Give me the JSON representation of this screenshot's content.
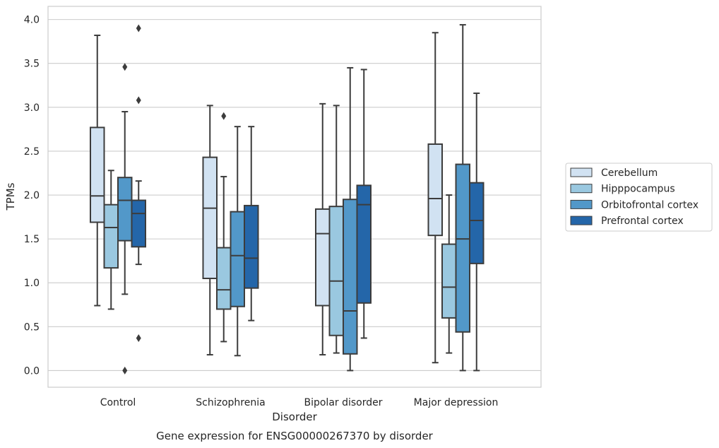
{
  "chart_data": {
    "type": "box",
    "xlabel": "Disorder",
    "ylabel": "TPMs",
    "caption": "Gene expression for ENSG00000267370 by disorder",
    "ylim": [
      -0.19,
      4.15
    ],
    "yticks": [
      "0.0",
      "0.5",
      "1.0",
      "1.5",
      "2.0",
      "2.5",
      "3.0",
      "3.5",
      "4.0"
    ],
    "grid": true,
    "legend_position": "right",
    "categories": [
      "Control",
      "Schizophrenia",
      "Bipolar disorder",
      "Major depression"
    ],
    "series": [
      {
        "name": "Cerebellum",
        "color": "#d1e2f2",
        "boxes": [
          {
            "whisker_low": 0.74,
            "q1": 1.69,
            "median": 1.99,
            "q3": 2.77,
            "whisker_high": 3.82,
            "outliers": []
          },
          {
            "whisker_low": 0.18,
            "q1": 1.05,
            "median": 1.85,
            "q3": 2.43,
            "whisker_high": 3.02,
            "outliers": []
          },
          {
            "whisker_low": 0.18,
            "q1": 0.74,
            "median": 1.56,
            "q3": 1.84,
            "whisker_high": 3.04,
            "outliers": []
          },
          {
            "whisker_low": 0.09,
            "q1": 1.54,
            "median": 1.96,
            "q3": 2.58,
            "whisker_high": 3.85,
            "outliers": []
          }
        ]
      },
      {
        "name": "Hipppocampus",
        "color": "#9ac8e0",
        "boxes": [
          {
            "whisker_low": 0.7,
            "q1": 1.17,
            "median": 1.63,
            "q3": 1.89,
            "whisker_high": 2.28,
            "outliers": []
          },
          {
            "whisker_low": 0.33,
            "q1": 0.7,
            "median": 0.92,
            "q3": 1.4,
            "whisker_high": 2.21,
            "outliers": [
              2.9
            ]
          },
          {
            "whisker_low": 0.2,
            "q1": 0.4,
            "median": 1.02,
            "q3": 1.87,
            "whisker_high": 3.02,
            "outliers": []
          },
          {
            "whisker_low": 0.2,
            "q1": 0.6,
            "median": 0.95,
            "q3": 1.44,
            "whisker_high": 2.0,
            "outliers": []
          }
        ]
      },
      {
        "name": "Orbitofrontal cortex",
        "color": "#5298c9",
        "boxes": [
          {
            "whisker_low": 0.87,
            "q1": 1.48,
            "median": 1.94,
            "q3": 2.2,
            "whisker_high": 2.95,
            "outliers": [
              3.46,
              0.0
            ]
          },
          {
            "whisker_low": 0.17,
            "q1": 0.73,
            "median": 1.31,
            "q3": 1.81,
            "whisker_high": 2.78,
            "outliers": []
          },
          {
            "whisker_low": 0.0,
            "q1": 0.19,
            "median": 0.68,
            "q3": 1.95,
            "whisker_high": 3.45,
            "outliers": []
          },
          {
            "whisker_low": 0.0,
            "q1": 0.44,
            "median": 1.5,
            "q3": 2.35,
            "whisker_high": 3.94,
            "outliers": []
          }
        ]
      },
      {
        "name": "Prefrontal cortex",
        "color": "#2466a9",
        "boxes": [
          {
            "whisker_low": 1.21,
            "q1": 1.41,
            "median": 1.79,
            "q3": 1.94,
            "whisker_high": 2.16,
            "outliers": [
              3.9,
              3.08,
              0.37
            ]
          },
          {
            "whisker_low": 0.57,
            "q1": 0.94,
            "median": 1.28,
            "q3": 1.88,
            "whisker_high": 2.78,
            "outliers": []
          },
          {
            "whisker_low": 0.37,
            "q1": 0.77,
            "median": 1.89,
            "q3": 2.11,
            "whisker_high": 3.43,
            "outliers": []
          },
          {
            "whisker_low": 0.0,
            "q1": 1.22,
            "median": 1.71,
            "q3": 2.14,
            "whisker_high": 3.16,
            "outliers": []
          }
        ]
      }
    ]
  }
}
